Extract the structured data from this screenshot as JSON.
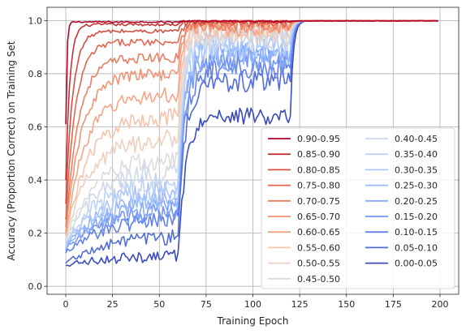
{
  "chart_data": {
    "type": "line",
    "title": "",
    "xlabel": "Training Epoch",
    "ylabel": "Accuracy (Proportion Correct) on Training Set",
    "xlim": [
      -10,
      210
    ],
    "ylim": [
      -0.03,
      1.05
    ],
    "xticks": [
      0,
      25,
      50,
      75,
      100,
      125,
      150,
      175,
      200
    ],
    "yticks": [
      0.0,
      0.2,
      0.4,
      0.6,
      0.8,
      1.0
    ],
    "grid": true,
    "legend_placement": "lower-right",
    "legend_columns": 2,
    "x_max_epoch": 199,
    "phase_boundaries": [
      60,
      120
    ],
    "series": [
      {
        "name": "0.90-0.95",
        "color": "#b40426",
        "start": 0.61,
        "plateau1": 0.995,
        "plateau2": 0.998,
        "noise": 0.002
      },
      {
        "name": "0.85-0.90",
        "color": "#c53334",
        "start": 0.4,
        "plateau1": 0.985,
        "plateau2": 0.997,
        "noise": 0.004
      },
      {
        "name": "0.80-0.85",
        "color": "#d44e41",
        "start": 0.31,
        "plateau1": 0.96,
        "plateau2": 0.995,
        "noise": 0.006
      },
      {
        "name": "0.75-0.80",
        "color": "#e16751",
        "start": 0.25,
        "plateau1": 0.92,
        "plateau2": 0.99,
        "noise": 0.01
      },
      {
        "name": "0.70-0.75",
        "color": "#ec7f63",
        "start": 0.22,
        "plateau1": 0.86,
        "plateau2": 0.985,
        "noise": 0.014
      },
      {
        "name": "0.65-0.70",
        "color": "#f39475",
        "start": 0.2,
        "plateau1": 0.8,
        "plateau2": 0.98,
        "noise": 0.018
      },
      {
        "name": "0.60-0.65",
        "color": "#f6a586",
        "start": 0.19,
        "plateau1": 0.72,
        "plateau2": 0.975,
        "noise": 0.022
      },
      {
        "name": "0.55-0.60",
        "color": "#f5c4ac",
        "start": 0.18,
        "plateau1": 0.64,
        "plateau2": 0.97,
        "noise": 0.026
      },
      {
        "name": "0.50-0.55",
        "color": "#eed0c0",
        "start": 0.18,
        "plateau1": 0.56,
        "plateau2": 0.96,
        "noise": 0.03
      },
      {
        "name": "0.45-0.50",
        "color": "#dddcdc",
        "start": 0.17,
        "plateau1": 0.48,
        "plateau2": 0.95,
        "noise": 0.032
      },
      {
        "name": "0.40-0.45",
        "color": "#cdd9ec",
        "start": 0.17,
        "plateau1": 0.44,
        "plateau2": 0.94,
        "noise": 0.034
      },
      {
        "name": "0.35-0.40",
        "color": "#bcd2f7",
        "start": 0.16,
        "plateau1": 0.4,
        "plateau2": 0.93,
        "noise": 0.035
      },
      {
        "name": "0.30-0.35",
        "color": "#aac7fd",
        "start": 0.16,
        "plateau1": 0.37,
        "plateau2": 0.91,
        "noise": 0.035
      },
      {
        "name": "0.25-0.30",
        "color": "#97b8ff",
        "start": 0.15,
        "plateau1": 0.34,
        "plateau2": 0.89,
        "noise": 0.035
      },
      {
        "name": "0.20-0.25",
        "color": "#85a8fc",
        "start": 0.15,
        "plateau1": 0.32,
        "plateau2": 0.87,
        "noise": 0.034
      },
      {
        "name": "0.15-0.20",
        "color": "#7396f5",
        "start": 0.14,
        "plateau1": 0.3,
        "plateau2": 0.85,
        "noise": 0.033
      },
      {
        "name": "0.10-0.15",
        "color": "#6282ea",
        "start": 0.13,
        "plateau1": 0.27,
        "plateau2": 0.82,
        "noise": 0.03
      },
      {
        "name": "0.05-0.10",
        "color": "#516ddb",
        "start": 0.09,
        "plateau1": 0.2,
        "plateau2": 0.77,
        "noise": 0.025
      },
      {
        "name": "0.00-0.05",
        "color": "#3b4cc0",
        "start": 0.08,
        "plateau1": 0.12,
        "plateau2": 0.64,
        "noise": 0.02
      }
    ]
  }
}
